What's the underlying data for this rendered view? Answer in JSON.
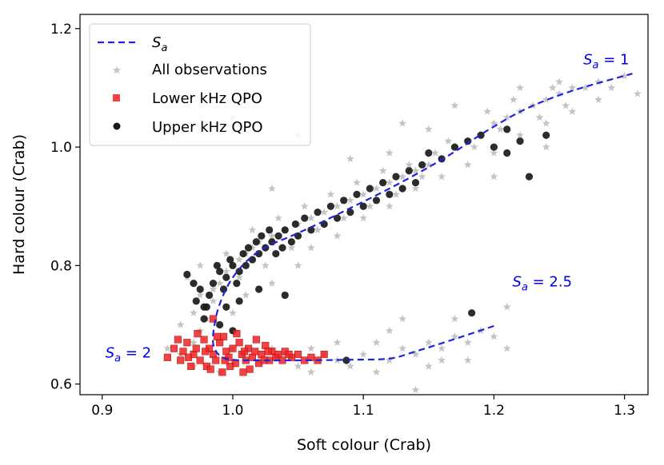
{
  "chart_data": {
    "type": "scatter",
    "xlabel": "Soft colour (Crab)",
    "ylabel": "Hard colour (Crab)",
    "xlim": [
      0.883,
      1.318
    ],
    "ylim": [
      0.582,
      1.224
    ],
    "xticks": [
      0.9,
      1.0,
      1.1,
      1.2,
      1.3
    ],
    "yticks": [
      0.6,
      0.8,
      1.0,
      1.2
    ],
    "xtick_labels": [
      "0.9",
      "1.0",
      "1.1",
      "1.2",
      "1.3"
    ],
    "ytick_labels": [
      "0.6",
      "0.8",
      "1.0",
      "1.2"
    ],
    "legend": {
      "position": "top-left",
      "entries": [
        {
          "label_prefix": "S",
          "label_sub": "a",
          "label": "Sa",
          "marker": "dashed-line",
          "color": "#2222dd"
        },
        {
          "label": "All observations",
          "marker": "star",
          "color": "#b0b0b0"
        },
        {
          "label": "Lower kHz QPO",
          "marker": "square",
          "color": "#ee2222"
        },
        {
          "label": "Upper kHz QPO",
          "marker": "circle",
          "color": "#1a1a1a"
        }
      ]
    },
    "annotations": [
      {
        "prefix": "S",
        "sub": "a",
        "rest": " = 1",
        "text": "Sa = 1",
        "x": 1.286,
        "y": 1.14
      },
      {
        "prefix": "S",
        "sub": "a",
        "rest": " = 2.5",
        "text": "Sa = 2.5",
        "x": 1.237,
        "y": 0.765
      },
      {
        "prefix": "S",
        "sub": "a",
        "rest": " = 2",
        "text": "Sa = 2",
        "x": 0.92,
        "y": 0.645
      }
    ],
    "series": [
      {
        "name": "Sa",
        "style": "dashed-line",
        "color": "#2222dd",
        "points": [
          [
            1.2,
            0.698
          ],
          [
            1.17,
            0.676
          ],
          [
            1.14,
            0.655
          ],
          [
            1.12,
            0.643
          ],
          [
            1.09,
            0.641
          ],
          [
            1.05,
            0.64
          ],
          [
            1.02,
            0.64
          ],
          [
            1.0,
            0.641
          ],
          [
            0.99,
            0.648
          ],
          [
            0.985,
            0.668
          ],
          [
            0.986,
            0.7
          ],
          [
            0.99,
            0.735
          ],
          [
            0.998,
            0.773
          ],
          [
            1.01,
            0.806
          ],
          [
            1.025,
            0.831
          ],
          [
            1.045,
            0.85
          ],
          [
            1.065,
            0.87
          ],
          [
            1.09,
            0.897
          ],
          [
            1.12,
            0.93
          ],
          [
            1.15,
            0.966
          ],
          [
            1.172,
            0.995
          ],
          [
            1.195,
            1.028
          ],
          [
            1.225,
            1.065
          ],
          [
            1.26,
            1.095
          ],
          [
            1.306,
            1.124
          ]
        ]
      },
      {
        "name": "All observations",
        "marker": "star",
        "color": "#b0b0b0",
        "points": [
          [
            0.95,
            0.66
          ],
          [
            0.96,
            0.65
          ],
          [
            0.97,
            0.67
          ],
          [
            0.975,
            0.69
          ],
          [
            0.98,
            0.71
          ],
          [
            0.985,
            0.74
          ],
          [
            0.99,
            0.77
          ],
          [
            0.995,
            0.79
          ],
          [
            1.0,
            0.8
          ],
          [
            1.005,
            0.81
          ],
          [
            1.01,
            0.82
          ],
          [
            1.015,
            0.83
          ],
          [
            1.02,
            0.84
          ],
          [
            1.03,
            0.85
          ],
          [
            1.04,
            0.86
          ],
          [
            1.05,
            0.87
          ],
          [
            1.06,
            0.88
          ],
          [
            1.07,
            0.89
          ],
          [
            1.08,
            0.9
          ],
          [
            1.09,
            0.91
          ],
          [
            1.1,
            0.92
          ],
          [
            1.11,
            0.93
          ],
          [
            1.12,
            0.94
          ],
          [
            1.13,
            0.95
          ],
          [
            1.14,
            0.96
          ],
          [
            1.15,
            0.97
          ],
          [
            1.16,
            0.98
          ],
          [
            1.17,
            1.0
          ],
          [
            1.18,
            1.01
          ],
          [
            1.19,
            1.02
          ],
          [
            1.2,
            1.04
          ],
          [
            1.21,
            1.05
          ],
          [
            1.22,
            1.06
          ],
          [
            1.23,
            1.07
          ],
          [
            1.24,
            1.08
          ],
          [
            1.25,
            1.09
          ],
          [
            1.26,
            1.1
          ],
          [
            1.27,
            1.1
          ],
          [
            1.28,
            1.11
          ],
          [
            1.29,
            1.1
          ],
          [
            1.3,
            1.12
          ],
          [
            1.255,
            1.07
          ],
          [
            1.245,
            1.1
          ],
          [
            1.235,
            1.05
          ],
          [
            1.215,
            1.08
          ],
          [
            1.205,
            1.03
          ],
          [
            1.195,
            1.06
          ],
          [
            1.185,
            1.0
          ],
          [
            1.165,
            1.01
          ],
          [
            1.155,
            0.99
          ],
          [
            1.145,
            0.95
          ],
          [
            1.135,
            0.97
          ],
          [
            1.125,
            0.92
          ],
          [
            1.115,
            0.96
          ],
          [
            1.105,
            0.9
          ],
          [
            1.095,
            0.94
          ],
          [
            1.085,
            0.88
          ],
          [
            1.075,
            0.92
          ],
          [
            1.065,
            0.86
          ],
          [
            1.055,
            0.9
          ],
          [
            1.045,
            0.83
          ],
          [
            1.035,
            0.88
          ],
          [
            1.025,
            0.8
          ],
          [
            1.015,
            0.86
          ],
          [
            1.005,
            0.78
          ],
          [
            0.995,
            0.82
          ],
          [
            0.985,
            0.76
          ],
          [
            0.975,
            0.8
          ],
          [
            0.965,
            0.78
          ],
          [
            0.97,
            0.72
          ],
          [
            0.975,
            0.75
          ],
          [
            1.0,
            0.72
          ],
          [
            1.01,
            0.75
          ],
          [
            1.03,
            0.77
          ],
          [
            1.05,
            0.8
          ],
          [
            1.06,
            0.83
          ],
          [
            1.08,
            0.85
          ],
          [
            1.1,
            0.88
          ],
          [
            1.12,
            0.9
          ],
          [
            1.14,
            0.93
          ],
          [
            1.16,
            0.95
          ],
          [
            1.18,
            0.97
          ],
          [
            1.2,
            0.99
          ],
          [
            1.22,
            1.02
          ],
          [
            1.24,
            1.04
          ],
          [
            1.26,
            1.06
          ],
          [
            1.28,
            1.08
          ],
          [
            1.31,
            1.09
          ],
          [
            1.25,
            1.11
          ],
          [
            1.22,
            1.1
          ],
          [
            1.12,
            0.99
          ],
          [
            1.09,
            0.98
          ],
          [
            1.15,
            1.03
          ],
          [
            1.03,
            0.93
          ],
          [
            1.2,
            0.95
          ],
          [
            1.24,
            1.0
          ],
          [
            0.96,
            0.7
          ],
          [
            1.0,
            0.66
          ],
          [
            1.02,
            0.64
          ],
          [
            1.04,
            0.65
          ],
          [
            1.06,
            0.66
          ],
          [
            1.08,
            0.64
          ],
          [
            1.1,
            0.65
          ],
          [
            1.12,
            0.64
          ],
          [
            1.13,
            0.66
          ],
          [
            1.14,
            0.65
          ],
          [
            1.15,
            0.67
          ],
          [
            1.16,
            0.66
          ],
          [
            1.17,
            0.68
          ],
          [
            1.18,
            0.67
          ],
          [
            1.19,
            0.69
          ],
          [
            1.2,
            0.68
          ],
          [
            1.21,
            0.66
          ],
          [
            1.11,
            0.62
          ],
          [
            1.14,
            0.59
          ],
          [
            1.16,
            0.64
          ],
          [
            1.12,
            0.69
          ],
          [
            1.13,
            0.71
          ],
          [
            1.17,
            0.71
          ],
          [
            1.05,
            0.63
          ],
          [
            1.07,
            0.65
          ],
          [
            1.09,
            0.63
          ],
          [
            1.03,
            0.66
          ],
          [
            0.97,
            0.63
          ],
          [
            0.99,
            0.62
          ],
          [
            1.11,
            0.67
          ],
          [
            1.15,
            0.63
          ],
          [
            1.18,
            0.64
          ],
          [
            1.21,
            0.73
          ],
          [
            1.08,
            0.67
          ],
          [
            1.06,
            0.62
          ],
          [
            1.0,
            1.05
          ],
          [
            1.05,
            1.02
          ],
          [
            1.13,
            1.04
          ],
          [
            1.17,
            1.07
          ]
        ]
      },
      {
        "name": "Lower kHz QPO",
        "marker": "square",
        "color": "#ee2222",
        "points": [
          [
            0.95,
            0.645
          ],
          [
            0.955,
            0.66
          ],
          [
            0.96,
            0.64
          ],
          [
            0.962,
            0.655
          ],
          [
            0.965,
            0.67
          ],
          [
            0.968,
            0.63
          ],
          [
            0.97,
            0.65
          ],
          [
            0.972,
            0.66
          ],
          [
            0.975,
            0.64
          ],
          [
            0.978,
            0.675
          ],
          [
            0.98,
            0.63
          ],
          [
            0.982,
            0.66
          ],
          [
            0.985,
            0.65
          ],
          [
            0.987,
            0.64
          ],
          [
            0.99,
            0.67
          ],
          [
            0.992,
            0.62
          ],
          [
            0.995,
            0.655
          ],
          [
            0.997,
            0.645
          ],
          [
            1.0,
            0.66
          ],
          [
            1.002,
            0.635
          ],
          [
            1.005,
            0.67
          ],
          [
            1.007,
            0.65
          ],
          [
            1.01,
            0.64
          ],
          [
            1.012,
            0.66
          ],
          [
            1.015,
            0.645
          ],
          [
            1.017,
            0.655
          ],
          [
            1.02,
            0.635
          ],
          [
            1.022,
            0.65
          ],
          [
            1.025,
            0.665
          ],
          [
            1.028,
            0.64
          ],
          [
            1.03,
            0.655
          ],
          [
            1.033,
            0.645
          ],
          [
            1.035,
            0.65
          ],
          [
            1.038,
            0.64
          ],
          [
            1.04,
            0.655
          ],
          [
            1.045,
            0.645
          ],
          [
            1.05,
            0.65
          ],
          [
            1.055,
            0.64
          ],
          [
            1.06,
            0.645
          ],
          [
            1.065,
            0.64
          ],
          [
            1.07,
            0.65
          ],
          [
            0.958,
            0.675
          ],
          [
            0.973,
            0.685
          ],
          [
            0.988,
            0.68
          ],
          [
            1.003,
            0.685
          ],
          [
            1.018,
            0.675
          ],
          [
            0.983,
            0.625
          ],
          [
            0.998,
            0.63
          ],
          [
            1.013,
            0.625
          ],
          [
            0.985,
            0.71
          ],
          [
            0.993,
            0.68
          ],
          [
            1.008,
            0.62
          ],
          [
            1.027,
            0.655
          ],
          [
            0.966,
            0.645
          ],
          [
            0.979,
            0.655
          ],
          [
            0.994,
            0.64
          ],
          [
            1.009,
            0.655
          ],
          [
            1.024,
            0.64
          ],
          [
            1.043,
            0.65
          ]
        ]
      },
      {
        "name": "Upper kHz QPO",
        "marker": "circle",
        "color": "#1a1a1a",
        "points": [
          [
            0.965,
            0.785
          ],
          [
            0.97,
            0.77
          ],
          [
            0.975,
            0.76
          ],
          [
            0.972,
            0.74
          ],
          [
            0.978,
            0.73
          ],
          [
            0.982,
            0.75
          ],
          [
            0.985,
            0.77
          ],
          [
            0.988,
            0.8
          ],
          [
            0.99,
            0.79
          ],
          [
            0.993,
            0.76
          ],
          [
            0.995,
            0.78
          ],
          [
            0.998,
            0.81
          ],
          [
            1.0,
            0.8
          ],
          [
            1.003,
            0.77
          ],
          [
            1.005,
            0.79
          ],
          [
            1.008,
            0.82
          ],
          [
            1.01,
            0.8
          ],
          [
            1.012,
            0.83
          ],
          [
            1.015,
            0.81
          ],
          [
            1.018,
            0.84
          ],
          [
            1.02,
            0.82
          ],
          [
            1.022,
            0.85
          ],
          [
            1.025,
            0.83
          ],
          [
            1.028,
            0.86
          ],
          [
            1.03,
            0.84
          ],
          [
            1.033,
            0.82
          ],
          [
            1.035,
            0.85
          ],
          [
            1.038,
            0.83
          ],
          [
            1.04,
            0.86
          ],
          [
            1.045,
            0.84
          ],
          [
            1.048,
            0.87
          ],
          [
            1.05,
            0.85
          ],
          [
            1.055,
            0.88
          ],
          [
            1.06,
            0.86
          ],
          [
            1.065,
            0.89
          ],
          [
            1.07,
            0.87
          ],
          [
            1.075,
            0.9
          ],
          [
            1.08,
            0.88
          ],
          [
            1.085,
            0.91
          ],
          [
            1.09,
            0.89
          ],
          [
            1.095,
            0.92
          ],
          [
            1.1,
            0.9
          ],
          [
            1.105,
            0.93
          ],
          [
            1.11,
            0.91
          ],
          [
            1.115,
            0.94
          ],
          [
            1.12,
            0.92
          ],
          [
            1.125,
            0.95
          ],
          [
            1.13,
            0.93
          ],
          [
            1.135,
            0.96
          ],
          [
            1.14,
            0.94
          ],
          [
            1.145,
            0.97
          ],
          [
            1.15,
            0.99
          ],
          [
            1.16,
            0.98
          ],
          [
            1.17,
            1.0
          ],
          [
            1.18,
            1.01
          ],
          [
            1.19,
            1.02
          ],
          [
            1.2,
            1.0
          ],
          [
            1.21,
            1.03
          ],
          [
            1.22,
            1.01
          ],
          [
            1.24,
            1.02
          ],
          [
            1.21,
            0.99
          ],
          [
            1.227,
            0.95
          ],
          [
            1.183,
            0.72
          ],
          [
            1.087,
            0.64
          ],
          [
            1.04,
            0.75
          ],
          [
            1.02,
            0.76
          ],
          [
            0.99,
            0.7
          ],
          [
            0.995,
            0.73
          ],
          [
            1.005,
            0.74
          ],
          [
            0.98,
            0.73
          ],
          [
            0.978,
            0.71
          ],
          [
            1.0,
            0.69
          ]
        ]
      }
    ]
  }
}
